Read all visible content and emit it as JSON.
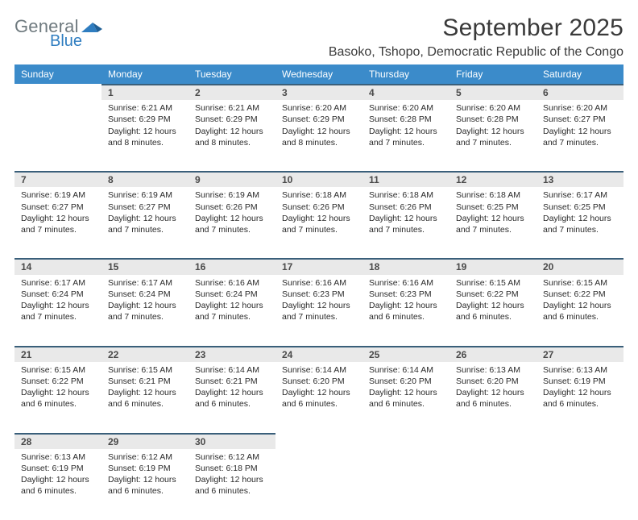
{
  "brand": {
    "general": "General",
    "blue": "Blue",
    "accent_color": "#2f7dc0",
    "text_color": "#6f7a7f"
  },
  "header": {
    "month_title": "September 2025",
    "location": "Basoko, Tshopo, Democratic Republic of the Congo"
  },
  "colors": {
    "th_bg": "#3b8bca",
    "th_text": "#ffffff",
    "daynum_bg": "#e9e9e9",
    "daynum_border": "#3a5f7a",
    "body_text": "#2b2b2b"
  },
  "weekdays": [
    "Sunday",
    "Monday",
    "Tuesday",
    "Wednesday",
    "Thursday",
    "Friday",
    "Saturday"
  ],
  "weeks": [
    {
      "days": [
        {
          "num": "",
          "sunrise": "",
          "sunset": "",
          "daylight": ""
        },
        {
          "num": "1",
          "sunrise": "Sunrise: 6:21 AM",
          "sunset": "Sunset: 6:29 PM",
          "daylight": "Daylight: 12 hours and 8 minutes."
        },
        {
          "num": "2",
          "sunrise": "Sunrise: 6:21 AM",
          "sunset": "Sunset: 6:29 PM",
          "daylight": "Daylight: 12 hours and 8 minutes."
        },
        {
          "num": "3",
          "sunrise": "Sunrise: 6:20 AM",
          "sunset": "Sunset: 6:29 PM",
          "daylight": "Daylight: 12 hours and 8 minutes."
        },
        {
          "num": "4",
          "sunrise": "Sunrise: 6:20 AM",
          "sunset": "Sunset: 6:28 PM",
          "daylight": "Daylight: 12 hours and 7 minutes."
        },
        {
          "num": "5",
          "sunrise": "Sunrise: 6:20 AM",
          "sunset": "Sunset: 6:28 PM",
          "daylight": "Daylight: 12 hours and 7 minutes."
        },
        {
          "num": "6",
          "sunrise": "Sunrise: 6:20 AM",
          "sunset": "Sunset: 6:27 PM",
          "daylight": "Daylight: 12 hours and 7 minutes."
        }
      ]
    },
    {
      "days": [
        {
          "num": "7",
          "sunrise": "Sunrise: 6:19 AM",
          "sunset": "Sunset: 6:27 PM",
          "daylight": "Daylight: 12 hours and 7 minutes."
        },
        {
          "num": "8",
          "sunrise": "Sunrise: 6:19 AM",
          "sunset": "Sunset: 6:27 PM",
          "daylight": "Daylight: 12 hours and 7 minutes."
        },
        {
          "num": "9",
          "sunrise": "Sunrise: 6:19 AM",
          "sunset": "Sunset: 6:26 PM",
          "daylight": "Daylight: 12 hours and 7 minutes."
        },
        {
          "num": "10",
          "sunrise": "Sunrise: 6:18 AM",
          "sunset": "Sunset: 6:26 PM",
          "daylight": "Daylight: 12 hours and 7 minutes."
        },
        {
          "num": "11",
          "sunrise": "Sunrise: 6:18 AM",
          "sunset": "Sunset: 6:26 PM",
          "daylight": "Daylight: 12 hours and 7 minutes."
        },
        {
          "num": "12",
          "sunrise": "Sunrise: 6:18 AM",
          "sunset": "Sunset: 6:25 PM",
          "daylight": "Daylight: 12 hours and 7 minutes."
        },
        {
          "num": "13",
          "sunrise": "Sunrise: 6:17 AM",
          "sunset": "Sunset: 6:25 PM",
          "daylight": "Daylight: 12 hours and 7 minutes."
        }
      ]
    },
    {
      "days": [
        {
          "num": "14",
          "sunrise": "Sunrise: 6:17 AM",
          "sunset": "Sunset: 6:24 PM",
          "daylight": "Daylight: 12 hours and 7 minutes."
        },
        {
          "num": "15",
          "sunrise": "Sunrise: 6:17 AM",
          "sunset": "Sunset: 6:24 PM",
          "daylight": "Daylight: 12 hours and 7 minutes."
        },
        {
          "num": "16",
          "sunrise": "Sunrise: 6:16 AM",
          "sunset": "Sunset: 6:24 PM",
          "daylight": "Daylight: 12 hours and 7 minutes."
        },
        {
          "num": "17",
          "sunrise": "Sunrise: 6:16 AM",
          "sunset": "Sunset: 6:23 PM",
          "daylight": "Daylight: 12 hours and 7 minutes."
        },
        {
          "num": "18",
          "sunrise": "Sunrise: 6:16 AM",
          "sunset": "Sunset: 6:23 PM",
          "daylight": "Daylight: 12 hours and 6 minutes."
        },
        {
          "num": "19",
          "sunrise": "Sunrise: 6:15 AM",
          "sunset": "Sunset: 6:22 PM",
          "daylight": "Daylight: 12 hours and 6 minutes."
        },
        {
          "num": "20",
          "sunrise": "Sunrise: 6:15 AM",
          "sunset": "Sunset: 6:22 PM",
          "daylight": "Daylight: 12 hours and 6 minutes."
        }
      ]
    },
    {
      "days": [
        {
          "num": "21",
          "sunrise": "Sunrise: 6:15 AM",
          "sunset": "Sunset: 6:22 PM",
          "daylight": "Daylight: 12 hours and 6 minutes."
        },
        {
          "num": "22",
          "sunrise": "Sunrise: 6:15 AM",
          "sunset": "Sunset: 6:21 PM",
          "daylight": "Daylight: 12 hours and 6 minutes."
        },
        {
          "num": "23",
          "sunrise": "Sunrise: 6:14 AM",
          "sunset": "Sunset: 6:21 PM",
          "daylight": "Daylight: 12 hours and 6 minutes."
        },
        {
          "num": "24",
          "sunrise": "Sunrise: 6:14 AM",
          "sunset": "Sunset: 6:20 PM",
          "daylight": "Daylight: 12 hours and 6 minutes."
        },
        {
          "num": "25",
          "sunrise": "Sunrise: 6:14 AM",
          "sunset": "Sunset: 6:20 PM",
          "daylight": "Daylight: 12 hours and 6 minutes."
        },
        {
          "num": "26",
          "sunrise": "Sunrise: 6:13 AM",
          "sunset": "Sunset: 6:20 PM",
          "daylight": "Daylight: 12 hours and 6 minutes."
        },
        {
          "num": "27",
          "sunrise": "Sunrise: 6:13 AM",
          "sunset": "Sunset: 6:19 PM",
          "daylight": "Daylight: 12 hours and 6 minutes."
        }
      ]
    },
    {
      "days": [
        {
          "num": "28",
          "sunrise": "Sunrise: 6:13 AM",
          "sunset": "Sunset: 6:19 PM",
          "daylight": "Daylight: 12 hours and 6 minutes."
        },
        {
          "num": "29",
          "sunrise": "Sunrise: 6:12 AM",
          "sunset": "Sunset: 6:19 PM",
          "daylight": "Daylight: 12 hours and 6 minutes."
        },
        {
          "num": "30",
          "sunrise": "Sunrise: 6:12 AM",
          "sunset": "Sunset: 6:18 PM",
          "daylight": "Daylight: 12 hours and 6 minutes."
        },
        {
          "num": "",
          "sunrise": "",
          "sunset": "",
          "daylight": ""
        },
        {
          "num": "",
          "sunrise": "",
          "sunset": "",
          "daylight": ""
        },
        {
          "num": "",
          "sunrise": "",
          "sunset": "",
          "daylight": ""
        },
        {
          "num": "",
          "sunrise": "",
          "sunset": "",
          "daylight": ""
        }
      ]
    }
  ]
}
